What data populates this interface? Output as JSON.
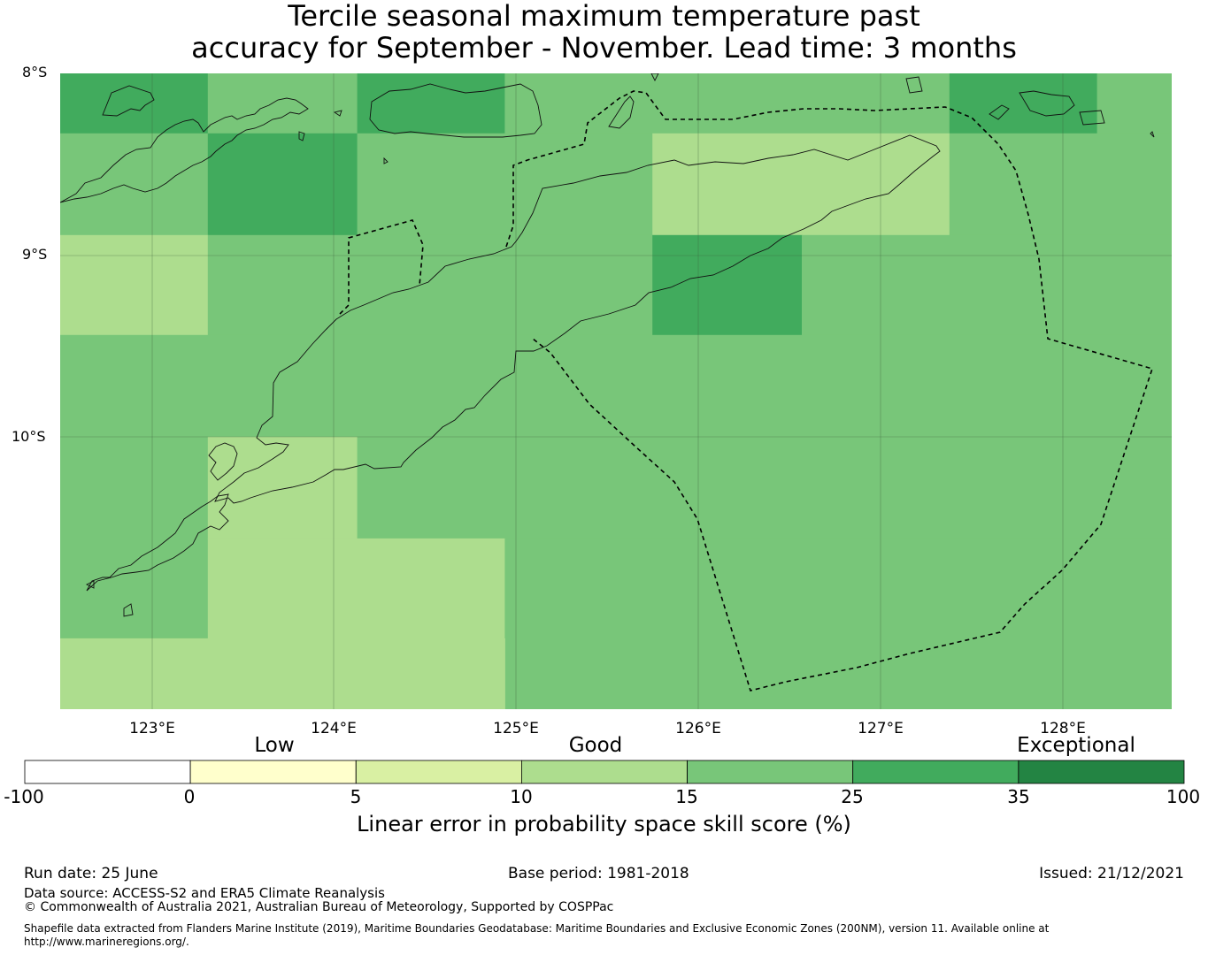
{
  "title": {
    "line1": "Tercile seasonal maximum temperature past",
    "line2": "accuracy for September - November. Lead time: 3 months"
  },
  "map": {
    "lat_labels": [
      "8°S",
      "9°S",
      "10°S"
    ],
    "lon_labels": [
      "123°E",
      "124°E",
      "125°E",
      "126°E",
      "127°E",
      "128°E"
    ],
    "extent": {
      "lon_min": 122.5,
      "lon_max": 128.75,
      "lat_max": -8.0,
      "lat_min": -11.5
    },
    "grid_cell_size_deg": [
      0.833,
      0.5556
    ],
    "cells": [
      {
        "lon0": 122.5,
        "lon1": 123.33,
        "lat0": -8.0,
        "lat1": -8.33,
        "band": "25-35"
      },
      {
        "lon0": 123.33,
        "lon1": 124.17,
        "lat0": -8.0,
        "lat1": -8.33,
        "band": "15-25"
      },
      {
        "lon0": 124.17,
        "lon1": 125.0,
        "lat0": -8.0,
        "lat1": -8.33,
        "band": "25-35"
      },
      {
        "lon0": 125.0,
        "lon1": 127.5,
        "lat0": -8.0,
        "lat1": -8.33,
        "band": "15-25"
      },
      {
        "lon0": 127.5,
        "lon1": 128.33,
        "lat0": -8.0,
        "lat1": -8.33,
        "band": "25-35"
      },
      {
        "lon0": 128.33,
        "lon1": 128.75,
        "lat0": -8.0,
        "lat1": -8.33,
        "band": "15-25"
      },
      {
        "lon0": 122.5,
        "lon1": 123.33,
        "lat0": -8.33,
        "lat1": -8.89,
        "band": "15-25"
      },
      {
        "lon0": 123.33,
        "lon1": 124.17,
        "lat0": -8.33,
        "lat1": -8.89,
        "band": "25-35"
      },
      {
        "lon0": 124.17,
        "lon1": 125.83,
        "lat0": -8.33,
        "lat1": -8.89,
        "band": "15-25"
      },
      {
        "lon0": 125.83,
        "lon1": 127.5,
        "lat0": -8.33,
        "lat1": -8.89,
        "band": "10-15"
      },
      {
        "lon0": 127.5,
        "lon1": 128.75,
        "lat0": -8.33,
        "lat1": -8.89,
        "band": "15-25"
      },
      {
        "lon0": 122.5,
        "lon1": 123.33,
        "lat0": -8.89,
        "lat1": -9.44,
        "band": "10-15"
      },
      {
        "lon0": 123.33,
        "lon1": 125.83,
        "lat0": -8.89,
        "lat1": -9.44,
        "band": "15-25"
      },
      {
        "lon0": 125.83,
        "lon1": 126.67,
        "lat0": -8.89,
        "lat1": -9.44,
        "band": "25-35"
      },
      {
        "lon0": 126.67,
        "lon1": 128.75,
        "lat0": -8.89,
        "lat1": -9.44,
        "band": "15-25"
      },
      {
        "lon0": 122.5,
        "lon1": 128.75,
        "lat0": -9.44,
        "lat1": -10.0,
        "band": "15-25"
      },
      {
        "lon0": 122.5,
        "lon1": 123.33,
        "lat0": -10.0,
        "lat1": -11.11,
        "band": "15-25"
      },
      {
        "lon0": 123.33,
        "lon1": 124.17,
        "lat0": -10.0,
        "lat1": -10.56,
        "band": "10-15"
      },
      {
        "lon0": 124.17,
        "lon1": 128.75,
        "lat0": -10.0,
        "lat1": -10.56,
        "band": "15-25"
      },
      {
        "lon0": 123.33,
        "lon1": 125.0,
        "lat0": -10.56,
        "lat1": -11.11,
        "band": "10-15"
      },
      {
        "lon0": 125.0,
        "lon1": 128.75,
        "lat0": -10.56,
        "lat1": -11.5,
        "band": "15-25"
      },
      {
        "lon0": 122.5,
        "lon1": 125.0,
        "lat0": -11.11,
        "lat1": -11.5,
        "band": "10-15"
      }
    ]
  },
  "colorbar": {
    "category_labels": [
      "Low",
      "Good",
      "Exceptional"
    ],
    "ticks": [
      "-100",
      "0",
      "5",
      "10",
      "15",
      "25",
      "35",
      "100"
    ],
    "colors": [
      "#ffffff",
      "#ffffcc",
      "#d9f0a3",
      "#addd8e",
      "#78c679",
      "#41ab5d",
      "#238443"
    ],
    "label": "Linear error in probability space skill score (%)"
  },
  "footer": {
    "run_date": "Run date: 25 June",
    "base_period": "Base period: 1981-2018",
    "issued": "Issued: 21/12/2021",
    "data_source": "Data source: ACCESS-S2 and ERA5 Climate Reanalysis",
    "copyright": "© Commonwealth of Australia 2021, Australian Bureau of Meteorology, Supported by COSPPac",
    "shapefile": "Shapefile data extracted from Flanders Marine Institute (2019), Maritime Boundaries Geodatabase: Maritime Boundaries and Exclusive Economic Zones (200NM), version 11. Available online at http://www.marineregions.org/."
  }
}
